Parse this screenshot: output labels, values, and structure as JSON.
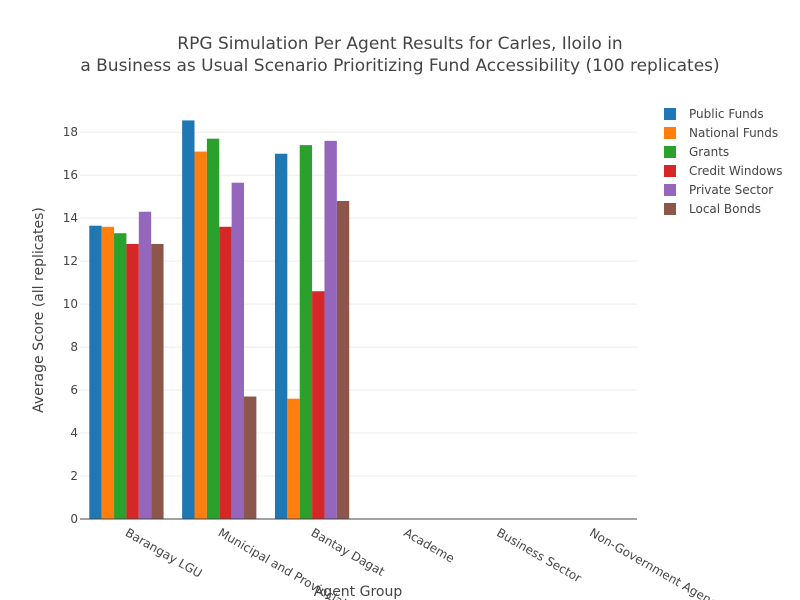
{
  "chart_data": {
    "type": "bar",
    "title_line1": "RPG Simulation Per Agent Results for Carles, Iloilo in",
    "title_line2": "a Business as Usual Scenario Prioritizing Fund Accessibility (100 replicates)",
    "xlabel": "Agent Group",
    "ylabel": "Average Score (all replicates)",
    "ylim": [
      0,
      19.5
    ],
    "yticks": [
      0,
      2,
      4,
      6,
      8,
      10,
      12,
      14,
      16,
      18
    ],
    "grid": true,
    "legend_position": "top-right",
    "categories": [
      "Barangay LGU",
      "Municipal and Provincial",
      "Bantay Dagat",
      "Academe",
      "Business Sector",
      "Non-Government Agencies"
    ],
    "series": [
      {
        "name": "Public Funds",
        "color": "#1f77b4",
        "values": [
          13.65,
          18.55,
          17.0,
          0,
          0,
          0
        ]
      },
      {
        "name": "National Funds",
        "color": "#ff7f0e",
        "values": [
          13.6,
          17.1,
          5.6,
          0,
          0,
          0
        ]
      },
      {
        "name": "Grants",
        "color": "#2ca02c",
        "values": [
          13.3,
          17.7,
          17.4,
          0,
          0,
          0
        ]
      },
      {
        "name": "Credit Windows",
        "color": "#d62728",
        "values": [
          12.8,
          13.6,
          10.6,
          0,
          0,
          0
        ]
      },
      {
        "name": "Private Sector",
        "color": "#9467bd",
        "values": [
          14.3,
          15.65,
          17.6,
          0,
          0,
          0
        ]
      },
      {
        "name": "Local Bonds",
        "color": "#8c564b",
        "values": [
          12.8,
          5.7,
          14.8,
          0,
          0,
          0
        ]
      }
    ]
  }
}
